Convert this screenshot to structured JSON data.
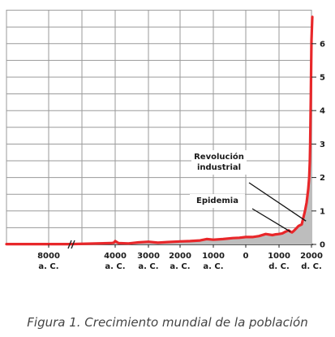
{
  "caption": "Figura 1. Crecimiento mundial de la población",
  "chart_data": {
    "type": "line",
    "title": "",
    "xlabel": "",
    "ylabel": "",
    "x_ticks": [
      {
        "value": -8000,
        "line1": "8000",
        "line2": "a. C."
      },
      {
        "value": -4000,
        "line1": "4000",
        "line2": "a. C."
      },
      {
        "value": -3000,
        "line1": "3000",
        "line2": "a. C."
      },
      {
        "value": -2000,
        "line1": "2000",
        "line2": "a. C."
      },
      {
        "value": -1000,
        "line1": "1000",
        "line2": "a. C."
      },
      {
        "value": 0,
        "line1": "0",
        "line2": ""
      },
      {
        "value": 1000,
        "line1": "1000",
        "line2": "d. C."
      },
      {
        "value": 2000,
        "line1": "2000",
        "line2": "d. C."
      }
    ],
    "axis_break": "between 8000 a. C. and 4000 a. C.",
    "y_ticks": [
      "0",
      "1",
      "2",
      "3",
      "4",
      "5",
      "6"
    ],
    "ylim": [
      0,
      6.6
    ],
    "y_axis_side": "right",
    "grid": true,
    "series": [
      {
        "color": "#e8272a",
        "fill": "#bdbdbd",
        "points": [
          [
            -9000,
            0.01
          ],
          [
            -8000,
            0.01
          ],
          [
            -7200,
            0.01
          ],
          [
            -4300,
            0.04
          ],
          [
            -4100,
            0.05
          ],
          [
            -4000,
            0.1
          ],
          [
            -3900,
            0.04
          ],
          [
            -3600,
            0.03
          ],
          [
            -3300,
            0.06
          ],
          [
            -3000,
            0.08
          ],
          [
            -2700,
            0.05
          ],
          [
            -2400,
            0.07
          ],
          [
            -2000,
            0.09
          ],
          [
            -1700,
            0.1
          ],
          [
            -1400,
            0.12
          ],
          [
            -1200,
            0.16
          ],
          [
            -1000,
            0.14
          ],
          [
            -700,
            0.16
          ],
          [
            -400,
            0.19
          ],
          [
            -200,
            0.2
          ],
          [
            0,
            0.22
          ],
          [
            200,
            0.22
          ],
          [
            400,
            0.25
          ],
          [
            600,
            0.31
          ],
          [
            800,
            0.28
          ],
          [
            900,
            0.3
          ],
          [
            1000,
            0.31
          ],
          [
            1100,
            0.33
          ],
          [
            1200,
            0.38
          ],
          [
            1300,
            0.42
          ],
          [
            1350,
            0.38
          ],
          [
            1400,
            0.36
          ],
          [
            1450,
            0.4
          ],
          [
            1500,
            0.45
          ],
          [
            1600,
            0.55
          ],
          [
            1700,
            0.6
          ],
          [
            1800,
            1.0
          ],
          [
            1850,
            1.25
          ],
          [
            1900,
            1.65
          ],
          [
            1930,
            2.0
          ],
          [
            1950,
            2.5
          ],
          [
            1960,
            3.0
          ],
          [
            1970,
            3.7
          ],
          [
            1980,
            4.4
          ],
          [
            1990,
            5.3
          ],
          [
            2000,
            6.1
          ],
          [
            2015,
            6.8
          ]
        ]
      }
    ],
    "annotations": [
      {
        "lines": [
          "Revolución",
          "industrial"
        ],
        "points_to_x": 1830,
        "points_to_y": 0.7
      },
      {
        "lines": [
          "Epidemia"
        ],
        "points_to_x": 1350,
        "points_to_y": 0.38
      }
    ]
  }
}
